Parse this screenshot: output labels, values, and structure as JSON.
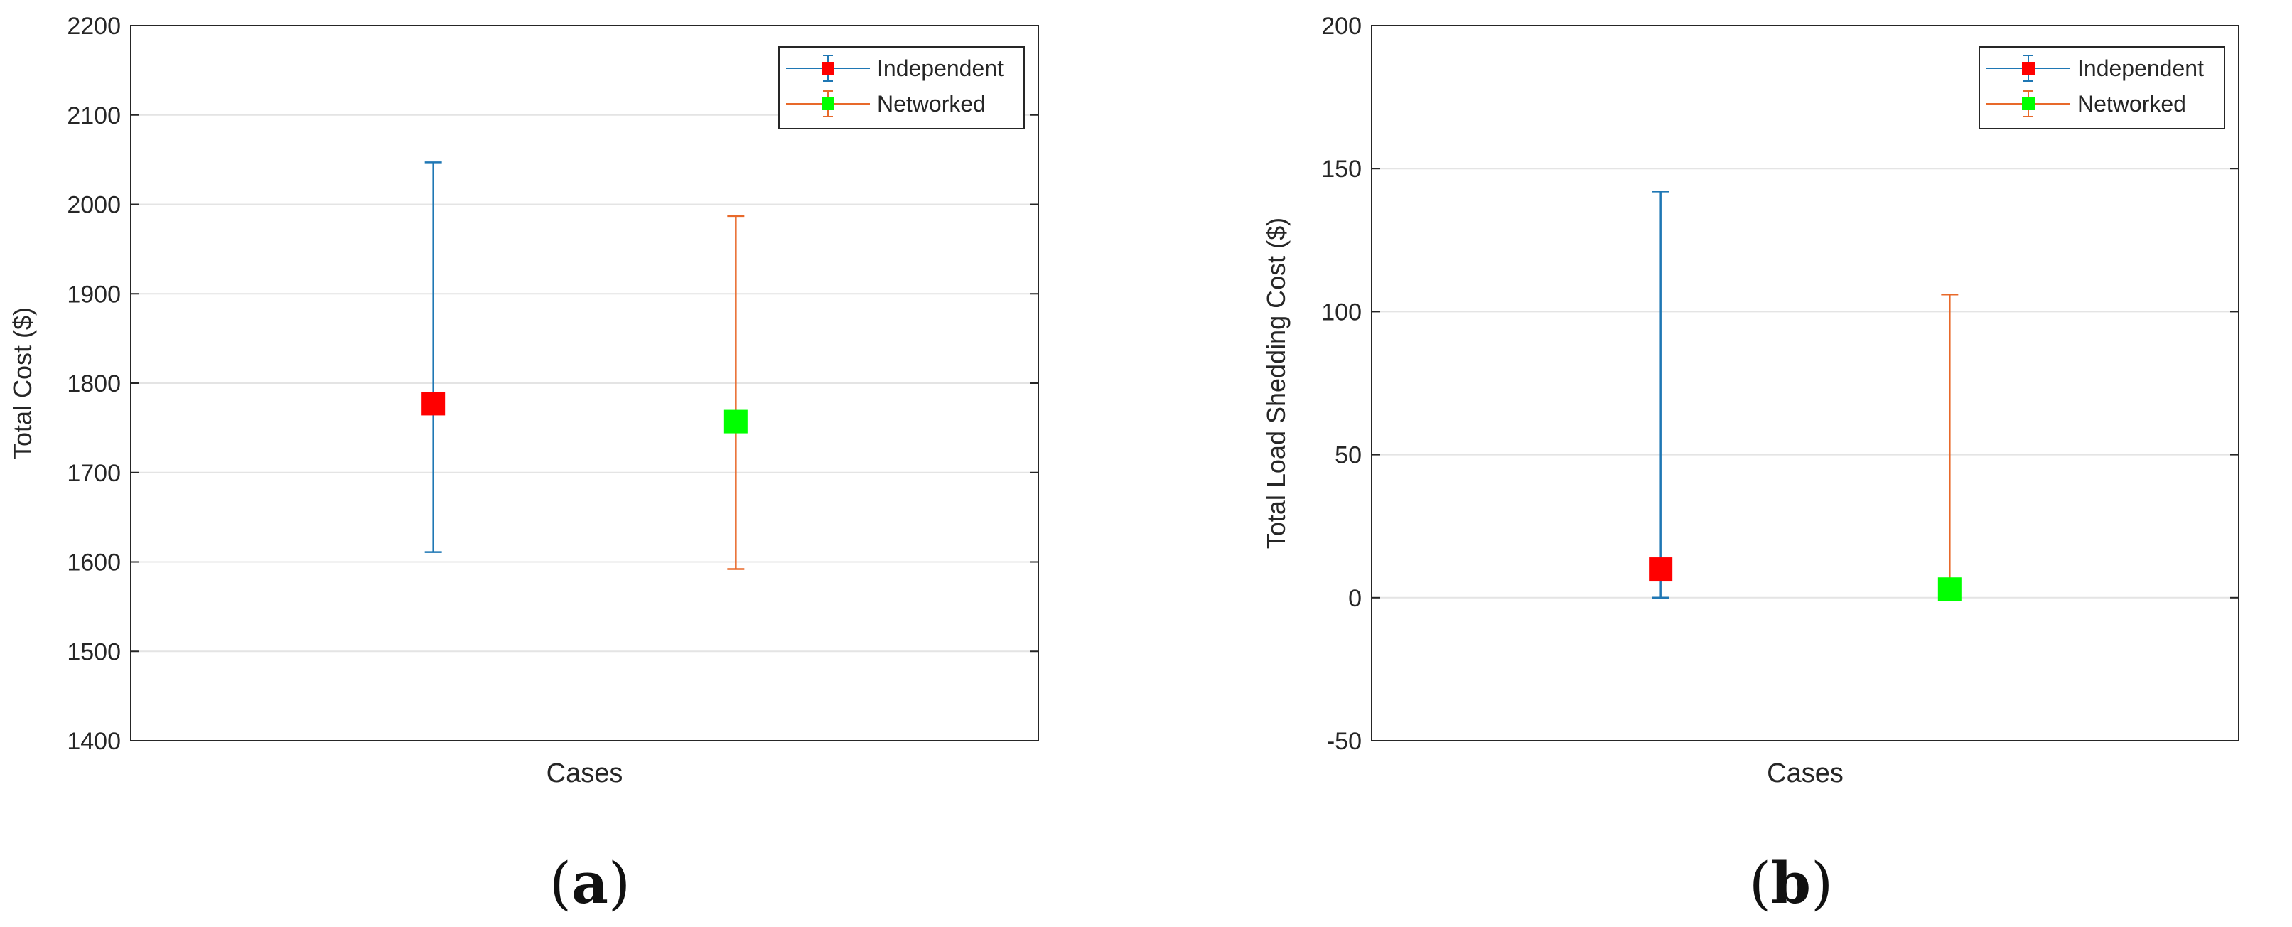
{
  "chart_data": [
    {
      "type": "scatter",
      "panel_label": "(a)",
      "xlabel": "Cases",
      "ylabel": "Total Cost ($)",
      "ylim": [
        1400,
        2200
      ],
      "yticks": [
        1400,
        1500,
        1600,
        1700,
        1800,
        1900,
        2000,
        2100,
        2200
      ],
      "grid": true,
      "legend_position": "top-right",
      "series": [
        {
          "name": "Independent",
          "x": 1,
          "y": 1777,
          "low": 1611,
          "high": 2047,
          "line_color": "#1f77b4",
          "marker_color": "#ff0000"
        },
        {
          "name": "Networked",
          "x": 2,
          "y": 1757,
          "low": 1592,
          "high": 1987,
          "line_color": "#e8692a",
          "marker_color": "#00ff00"
        }
      ]
    },
    {
      "type": "scatter",
      "panel_label": "(b)",
      "xlabel": "Cases",
      "ylabel": "Total Load Shedding Cost ($)",
      "ylim": [
        -50,
        200
      ],
      "yticks": [
        -50,
        0,
        50,
        100,
        150,
        200
      ],
      "grid": true,
      "legend_position": "top-right",
      "series": [
        {
          "name": "Independent",
          "x": 1,
          "y": 10,
          "low": 0,
          "high": 142,
          "line_color": "#1f77b4",
          "marker_color": "#ff0000"
        },
        {
          "name": "Networked",
          "x": 2,
          "y": 3,
          "low": 0,
          "high": 106,
          "line_color": "#e8692a",
          "marker_color": "#00ff00"
        }
      ]
    }
  ]
}
